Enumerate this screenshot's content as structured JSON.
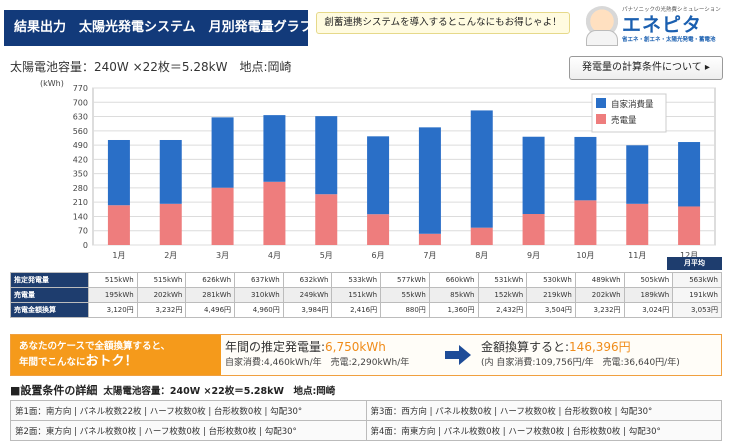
{
  "header": {
    "title": "結果出力　太陽光発電システム　月別発電量グラフ",
    "promo": "創蓄連携システムを導入するとこんなにもお得じゃよ！",
    "logo_tag": "パナソニックの光熱費シミュレーション",
    "logo_brand": "エネピタ",
    "logo_sub": "省エネ・創エネ・太陽光発電・蓄電池"
  },
  "capacity_line": "太陽電池容量：240W ×22枚＝5.28kW　地点:岡崎",
  "calc_button": "発電量の計算条件について ▸",
  "chart_data": {
    "type": "bar",
    "stacked": true,
    "categories": [
      "1月",
      "2月",
      "3月",
      "4月",
      "5月",
      "6月",
      "7月",
      "8月",
      "9月",
      "10月",
      "11月",
      "12月"
    ],
    "series": [
      {
        "name": "自家消費量",
        "color": "#2a6fc7",
        "values": [
          320,
          313,
          345,
          327,
          383,
          382,
          522,
          575,
          379,
          311,
          287,
          316
        ]
      },
      {
        "name": "売電量",
        "color": "#ee7d7d",
        "values": [
          195,
          202,
          281,
          310,
          249,
          151,
          55,
          85,
          152,
          219,
          202,
          189
        ]
      }
    ],
    "ylabel": "(kWh)",
    "ylim": [
      0,
      770
    ],
    "yticks": [
      "0",
      "70",
      "140",
      "210",
      "280",
      "350",
      "420",
      "490",
      "560",
      "630",
      "700",
      "770"
    ],
    "grid": true,
    "legend": "top-right"
  },
  "table": {
    "avg_header": "月平均",
    "rows": [
      {
        "label": "推定発電量",
        "values": [
          "515kWh",
          "515kWh",
          "626kWh",
          "637kWh",
          "632kWh",
          "533kWh",
          "577kWh",
          "660kWh",
          "531kWh",
          "530kWh",
          "489kWh",
          "505kWh"
        ],
        "avg": "563kWh"
      },
      {
        "label": "売電量",
        "values": [
          "195kWh",
          "202kWh",
          "281kWh",
          "310kWh",
          "249kWh",
          "151kWh",
          "55kWh",
          "85kWh",
          "152kWh",
          "219kWh",
          "202kWh",
          "189kWh"
        ],
        "avg": "191kWh"
      },
      {
        "label": "売電金額換算",
        "values": [
          "3,120円",
          "3,232円",
          "4,496円",
          "4,960円",
          "3,984円",
          "2,416円",
          "880円",
          "1,360円",
          "2,432円",
          "3,504円",
          "3,232円",
          "3,024円"
        ],
        "avg": "3,053円"
      }
    ]
  },
  "summary": {
    "line1": "あなたのケースで全額換算すると、",
    "line2": "年間でこんなに",
    "line2_big": "おトク！",
    "gen_label": "年間の推定発電量:",
    "gen_value": "6,750kWh",
    "gen_sub": "自家消費:4,460kWh/年　売電:2,290kWh/年",
    "money_label": "金額換算すると:",
    "money_value": "146,396円",
    "money_sub": "(内 自家消費:109,756円/年　売電:36,640円/年)"
  },
  "conditions": {
    "title": "■設置条件の詳細",
    "capacity": "太陽電池容量：240W ×22枚＝5.28kW　地点:岡崎",
    "faces": [
      "第1面：南方向 | パネル枚数22枚 | ハーフ枚数0枚 | 台形枚数0枚 | 勾配30°",
      "第3面：西方向 | パネル枚数0枚 | ハーフ枚数0枚 | 台形枚数0枚 | 勾配30°",
      "第2面：東方向 | パネル枚数0枚 | ハーフ枚数0枚 | 台形枚数0枚 | 勾配30°",
      "第4面：南東方向 | パネル枚数0枚 | ハーフ枚数0枚 | 台形枚数0枚 | 勾配30°"
    ]
  }
}
